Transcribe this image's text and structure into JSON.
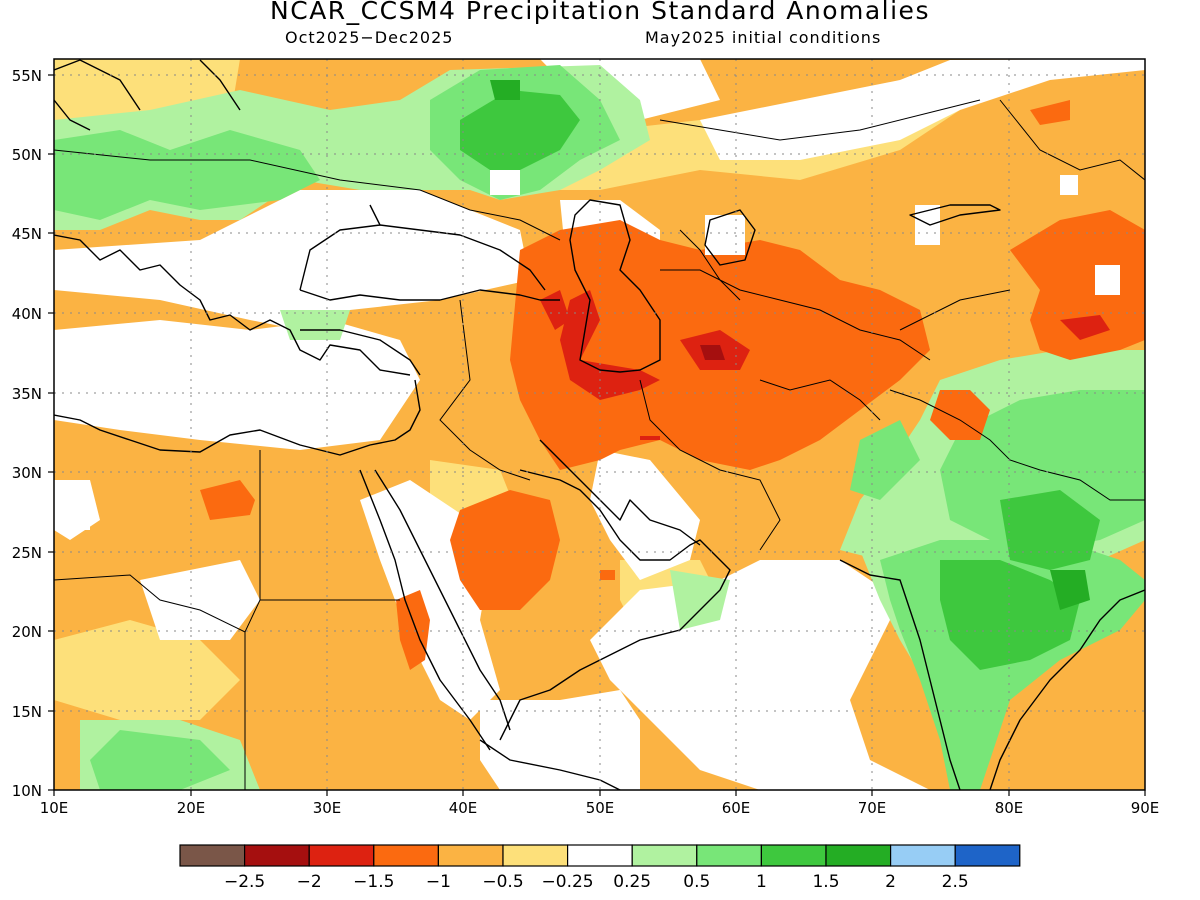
{
  "title": "NCAR_CCSM4 Precipitation Standard Anomalies",
  "subtitle_left": "Oct2025−Dec2025",
  "subtitle_right": "May2025 initial conditions",
  "axes": {
    "lon_ticks": [
      "10E",
      "20E",
      "30E",
      "40E",
      "50E",
      "60E",
      "70E",
      "80E",
      "90E"
    ],
    "lat_ticks": [
      "55N",
      "50N",
      "45N",
      "40N",
      "35N",
      "30N",
      "25N",
      "20N",
      "15N",
      "10N"
    ],
    "lon_range": [
      10,
      90
    ],
    "lat_range": [
      10,
      56.5
    ],
    "grid": "dotted"
  },
  "legend": {
    "colors": [
      "#7a5648",
      "#a50f0f",
      "#dd2211",
      "#fb6a10",
      "#fbb343",
      "#fde07a",
      "#ffffff",
      "#b0f2a0",
      "#78e678",
      "#3ec83e",
      "#24ad24",
      "#97cdf5",
      "#1e64c8"
    ],
    "labels": [
      "−2.5",
      "−2",
      "−1.5",
      "−1",
      "−0.5",
      "−0.25",
      "0.25",
      "0.5",
      "1",
      "1.5",
      "2",
      "2.5"
    ]
  },
  "chart_data": {
    "type": "map",
    "variable": "Precipitation Standard Anomalies",
    "period": "Oct2025−Dec2025",
    "initial_conditions": "May2025",
    "model": "NCAR_CCSM4",
    "color_scale": [
      -2.5,
      -2,
      -1.5,
      -1,
      -0.5,
      -0.25,
      0.25,
      0.5,
      1,
      1.5,
      2,
      2.5
    ]
  }
}
